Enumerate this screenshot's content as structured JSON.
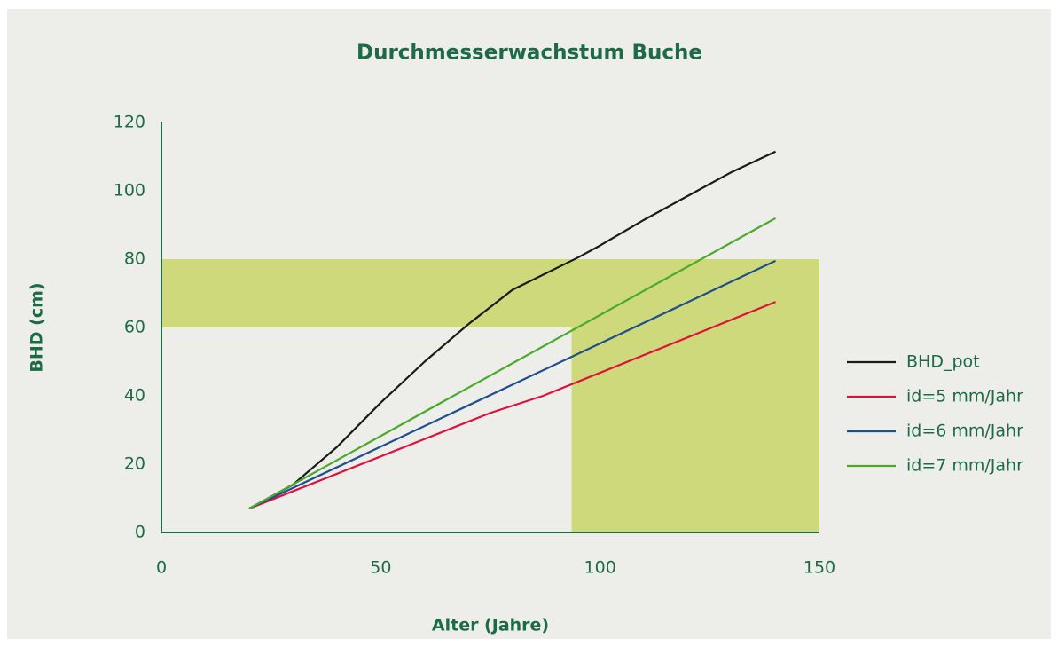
{
  "chart_data": {
    "type": "line",
    "title": "Durchmesserwachstum Buche",
    "x_label": "Alter (Jahre)",
    "y_label": "BHD (cm)",
    "xlim": [
      0,
      150
    ],
    "xticks": [
      0,
      50,
      100,
      150
    ],
    "ylim": [
      0,
      120
    ],
    "yticks": [
      0,
      20,
      40,
      60,
      80,
      100,
      120
    ],
    "bands": [
      {
        "x": [
          0,
          150
        ],
        "y": [
          60,
          80
        ],
        "color": "#cdd97a"
      },
      {
        "x": [
          93.5,
          150
        ],
        "y": [
          0,
          80
        ],
        "color": "#cdd97a"
      }
    ],
    "series": [
      {
        "name": "BHD_pot",
        "color": "#1a1a1a",
        "x": [
          20,
          30,
          40,
          50,
          60,
          70,
          80,
          95,
          100,
          110,
          120,
          130,
          140
        ],
        "values": [
          7,
          14,
          25,
          38,
          50,
          61,
          71,
          80.5,
          84,
          91.5,
          98.5,
          105.5,
          111.5
        ]
      },
      {
        "name": "id=5 mm/Jahr",
        "color": "#e0103c",
        "x": [
          20,
          75,
          87,
          140
        ],
        "values": [
          7,
          35,
          40,
          67.5
        ]
      },
      {
        "name": "id=6 mm/Jahr",
        "color": "#1f4e8c",
        "x": [
          20,
          140
        ],
        "values": [
          7,
          79.5
        ]
      },
      {
        "name": "id=7 mm/Jahr",
        "color": "#4aaa2a",
        "x": [
          20,
          140
        ],
        "values": [
          7,
          92
        ]
      }
    ]
  }
}
